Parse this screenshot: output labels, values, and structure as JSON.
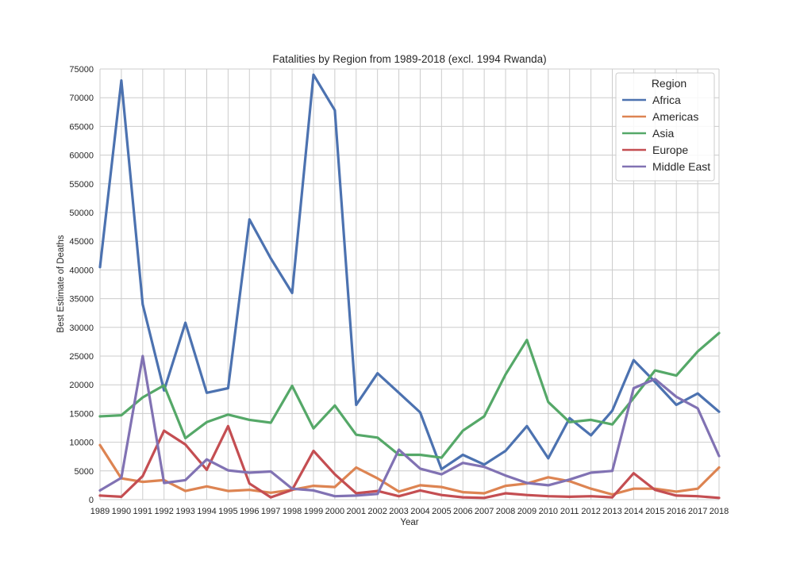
{
  "chart_data": {
    "type": "line",
    "title": "Fatalities by Region from 1989-2018 (excl. 1994 Rwanda)",
    "xlabel": "Year",
    "ylabel": "Best Estimate of Deaths",
    "x": [
      1989,
      1990,
      1991,
      1992,
      1993,
      1994,
      1995,
      1996,
      1997,
      1998,
      1999,
      2000,
      2001,
      2002,
      2003,
      2004,
      2005,
      2006,
      2007,
      2008,
      2009,
      2010,
      2011,
      2012,
      2013,
      2014,
      2015,
      2016,
      2017,
      2018
    ],
    "xlim": [
      1989,
      2018
    ],
    "ylim": [
      0,
      75000
    ],
    "yticks": [
      0,
      5000,
      10000,
      15000,
      20000,
      25000,
      30000,
      35000,
      40000,
      45000,
      50000,
      55000,
      60000,
      65000,
      70000,
      75000
    ],
    "grid": true,
    "legend": {
      "title": "Region",
      "placement": "top-right"
    },
    "series": [
      {
        "name": "Africa",
        "color": "#4c72b0",
        "values": [
          40500,
          73000,
          34000,
          19000,
          30800,
          18600,
          19400,
          48800,
          42000,
          36000,
          74000,
          67800,
          16500,
          22000,
          18600,
          15200,
          5300,
          7800,
          6100,
          8500,
          12800,
          7200,
          14200,
          11200,
          15500,
          24300,
          20500,
          16500,
          18500,
          15300
        ]
      },
      {
        "name": "Americas",
        "color": "#dd8452",
        "values": [
          9500,
          3700,
          3100,
          3400,
          1500,
          2300,
          1500,
          1700,
          1200,
          1700,
          2400,
          2200,
          5600,
          3700,
          1400,
          2500,
          2200,
          1300,
          1100,
          2400,
          2800,
          3900,
          3200,
          1900,
          900,
          1900,
          1900,
          1400,
          1900,
          5600
        ]
      },
      {
        "name": "Asia",
        "color": "#55a868",
        "values": [
          14500,
          14700,
          17800,
          19900,
          10700,
          13500,
          14800,
          13900,
          13400,
          19800,
          12400,
          16400,
          11300,
          10800,
          7800,
          7800,
          7300,
          12000,
          14500,
          21800,
          27800,
          17000,
          13500,
          13900,
          13100,
          17700,
          22500,
          21600,
          25800,
          29000
        ]
      },
      {
        "name": "Europe",
        "color": "#c44e52",
        "values": [
          700,
          500,
          4100,
          12000,
          9600,
          5200,
          12800,
          2800,
          400,
          1700,
          8500,
          4400,
          1100,
          1500,
          600,
          1600,
          800,
          400,
          300,
          1100,
          800,
          600,
          500,
          600,
          400,
          4600,
          1700,
          700,
          600,
          300
        ]
      },
      {
        "name": "Middle East",
        "color": "#8172b3",
        "values": [
          1600,
          3800,
          25000,
          2900,
          3400,
          7000,
          5100,
          4700,
          4900,
          1900,
          1600,
          600,
          700,
          1000,
          8700,
          5400,
          4400,
          6400,
          5700,
          4200,
          2900,
          2500,
          3500,
          4700,
          5000,
          19400,
          21000,
          17900,
          15900,
          7600
        ]
      }
    ]
  }
}
